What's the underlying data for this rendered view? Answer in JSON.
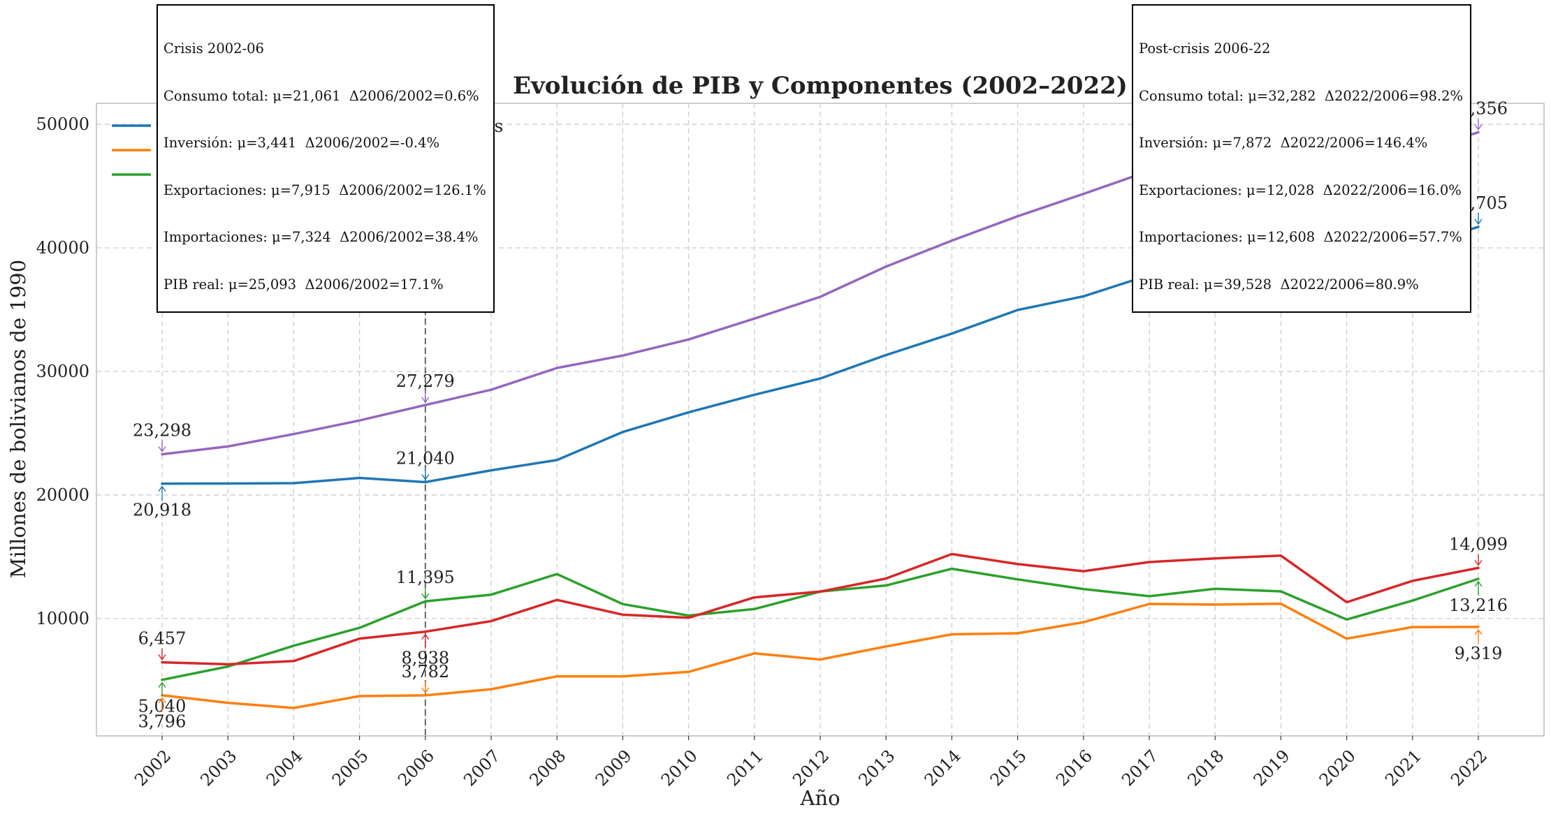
{
  "chart_data": {
    "type": "line",
    "title": "Evolución de PIB y Componentes (2002–2022)",
    "xlabel": "Año",
    "ylabel": "Millones de bolivianos de 1990",
    "x": [
      2002,
      2003,
      2004,
      2005,
      2006,
      2007,
      2008,
      2009,
      2010,
      2011,
      2012,
      2013,
      2014,
      2015,
      2016,
      2017,
      2018,
      2019,
      2020,
      2021,
      2022
    ],
    "xlim": [
      2001,
      2023
    ],
    "ylim": [
      500,
      51700
    ],
    "yticks": [
      10000,
      20000,
      30000,
      40000,
      50000
    ],
    "grid": true,
    "legend_position": "top-left",
    "vline_x": 2006,
    "series": [
      {
        "name": "Consumo total",
        "color": "#1f77b4",
        "values": [
          20918,
          20930,
          20960,
          21380,
          21040,
          22000,
          22830,
          25100,
          26690,
          28110,
          29430,
          31330,
          33060,
          34970,
          36080,
          37800,
          39470,
          40940,
          38030,
          40030,
          41705
        ]
      },
      {
        "name": "Inversión",
        "color": "#ff7f0e",
        "values": [
          3796,
          3180,
          2760,
          3720,
          3782,
          4280,
          5320,
          5320,
          5680,
          7180,
          6680,
          7740,
          8720,
          8810,
          9700,
          11180,
          11130,
          11200,
          8370,
          9310,
          9319
        ]
      },
      {
        "name": "Exportaciones",
        "color": "#2ca02c",
        "values": [
          5040,
          6120,
          7800,
          9250,
          11395,
          11930,
          13600,
          11170,
          10240,
          10770,
          12180,
          12680,
          14030,
          13170,
          12390,
          11810,
          12410,
          12200,
          9920,
          11450,
          13216
        ]
      },
      {
        "name": "Importaciones",
        "color": "#d62728",
        "values": [
          6457,
          6300,
          6560,
          8380,
          8938,
          9790,
          11510,
          10310,
          10060,
          11710,
          12180,
          13240,
          15220,
          14410,
          13830,
          14570,
          14870,
          15090,
          11320,
          13050,
          14099
        ]
      },
      {
        "name": "PIB real",
        "color": "#9467bd",
        "values": [
          23298,
          23930,
          24930,
          26030,
          27279,
          28520,
          30280,
          31290,
          32590,
          34280,
          36040,
          38490,
          40590,
          42560,
          44370,
          46230,
          48210,
          49260,
          44990,
          47720,
          49356
        ]
      }
    ],
    "point_labels": [
      {
        "series": "PIB real",
        "x": 2002,
        "text": "23,298"
      },
      {
        "series": "Consumo total",
        "x": 2002,
        "text": "20,918"
      },
      {
        "series": "Importaciones",
        "x": 2002,
        "text": "6,457"
      },
      {
        "series": "Exportaciones",
        "x": 2002,
        "text": "5,040"
      },
      {
        "series": "Inversión",
        "x": 2002,
        "text": "3,796"
      },
      {
        "series": "PIB real",
        "x": 2006,
        "text": "27,279"
      },
      {
        "series": "Consumo total",
        "x": 2006,
        "text": "21,040"
      },
      {
        "series": "Exportaciones",
        "x": 2006,
        "text": "11,395"
      },
      {
        "series": "Importaciones",
        "x": 2006,
        "text": "8,938"
      },
      {
        "series": "Inversión",
        "x": 2006,
        "text": "3,782"
      },
      {
        "series": "PIB real",
        "x": 2022,
        "text": "49,356"
      },
      {
        "series": "Consumo total",
        "x": 2022,
        "text": "41,705"
      },
      {
        "series": "Importaciones",
        "x": 2022,
        "text": "14,099"
      },
      {
        "series": "Exportaciones",
        "x": 2022,
        "text": "13,216"
      },
      {
        "series": "Inversión",
        "x": 2022,
        "text": "9,319"
      }
    ]
  },
  "annotations": {
    "crisis": {
      "title": "Crisis 2002-06",
      "lines": [
        "Consumo total: μ=21,061  Δ2006/2002=0.6%",
        "Inversión: μ=3,441  Δ2006/2002=-0.4%",
        "Exportaciones: μ=7,915  Δ2006/2002=126.1%",
        "Importaciones: μ=7,324  Δ2006/2002=38.4%",
        "PIB real: μ=25,093  Δ2006/2002=17.1%"
      ]
    },
    "postcrisis": {
      "title": "Post-crisis 2006-22",
      "lines": [
        "Consumo total: μ=32,282  Δ2022/2006=98.2%",
        "Inversión: μ=7,872  Δ2022/2006=146.4%",
        "Exportaciones: μ=12,028  Δ2022/2006=16.0%",
        "Importaciones: μ=12,608  Δ2022/2006=57.7%",
        "PIB real: μ=39,528  Δ2022/2006=80.9%"
      ]
    }
  }
}
